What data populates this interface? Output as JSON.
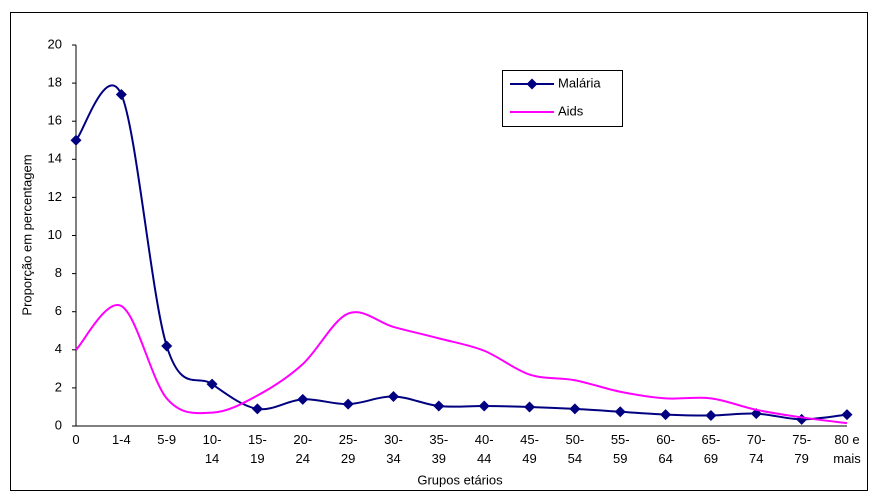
{
  "chart_data": {
    "type": "line",
    "x_label": "Grupos etários",
    "y_label": "Proporção em percentagem",
    "categories": [
      "0",
      "1-4",
      "5-9",
      "10-\n14",
      "15-\n19",
      "20-\n24",
      "25-\n29",
      "30-\n34",
      "35-\n39",
      "40-\n44",
      "45-\n49",
      "50-\n54",
      "55-\n59",
      "60-\n64",
      "65-\n69",
      "70-\n74",
      "75-\n79",
      "80 e\nmais"
    ],
    "series": [
      {
        "name": "Malária",
        "color": "#000080",
        "marker": "diamond",
        "values": [
          15,
          17.4,
          4.2,
          2.2,
          0.9,
          1.4,
          1.15,
          1.55,
          1.05,
          1.05,
          1.0,
          0.9,
          0.75,
          0.6,
          0.55,
          0.65,
          0.35,
          0.6
        ]
      },
      {
        "name": "Aids",
        "color": "#ff00ff",
        "values": [
          4.0,
          6.3,
          1.45,
          0.7,
          1.6,
          3.25,
          5.9,
          5.2,
          4.6,
          3.95,
          2.7,
          2.4,
          1.8,
          1.45,
          1.45,
          0.85,
          0.45,
          0.15
        ]
      }
    ],
    "ylim": [
      0,
      20
    ],
    "yticks": [
      0,
      2,
      4,
      6,
      8,
      10,
      12,
      14,
      16,
      18,
      20
    ],
    "smooth": true,
    "legend": "top-right"
  }
}
